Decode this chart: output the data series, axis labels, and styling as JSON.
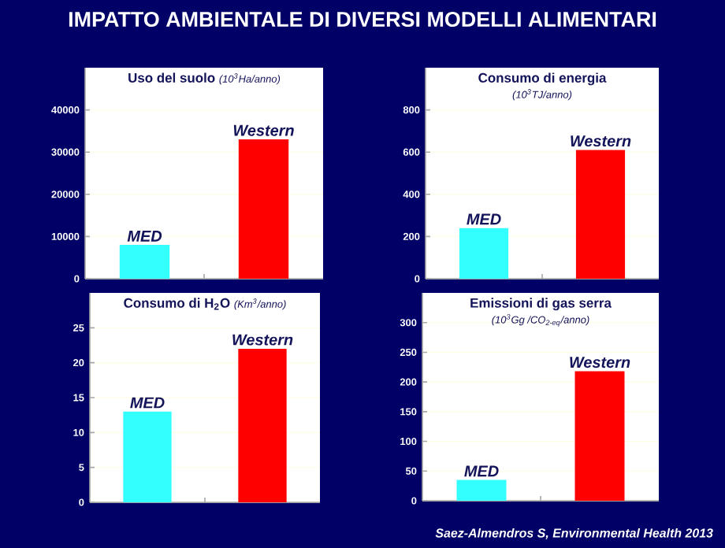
{
  "chart_data": [
    {
      "type": "bar",
      "title": "Uso del suolo",
      "subtitle": "(10$^{3}$Ha/anno)",
      "categories": [
        "MED",
        "Western"
      ],
      "values": [
        8000,
        33000
      ],
      "colors": [
        "#33ffff",
        "#ff0000"
      ],
      "ylim": [
        0,
        50000
      ],
      "yticks": [
        0,
        10000,
        20000,
        30000,
        40000
      ],
      "grid": "y"
    },
    {
      "type": "bar",
      "title": "Consumo di energia",
      "subtitle": "(10$^{3}$TJ/anno)",
      "categories": [
        "MED",
        "Western"
      ],
      "values": [
        240,
        610
      ],
      "colors": [
        "#33ffff",
        "#ff0000"
      ],
      "ylim": [
        0,
        1000
      ],
      "yticks": [
        0,
        200,
        400,
        600,
        800
      ],
      "grid": "y"
    },
    {
      "type": "bar",
      "title": "Consumo di H$_{2}$O",
      "subtitle": "(Km$^{3}$/anno)",
      "categories": [
        "MED",
        "Western"
      ],
      "values": [
        13,
        22
      ],
      "colors": [
        "#33ffff",
        "#ff0000"
      ],
      "ylim": [
        0,
        30
      ],
      "yticks": [
        0,
        5,
        10,
        15,
        20,
        25
      ],
      "grid": "y"
    },
    {
      "type": "bar",
      "title": "Emissioni di gas serra",
      "subtitle": "(10$^{3}$Gg /CO$_{2-eq}$/anno)",
      "categories": [
        "MED",
        "Western"
      ],
      "values": [
        35,
        218
      ],
      "colors": [
        "#33ffff",
        "#ff0000"
      ],
      "ylim": [
        0,
        350
      ],
      "yticks": [
        0,
        50,
        100,
        150,
        200,
        250,
        300
      ],
      "grid": "y"
    },
    {
      "type": "other",
      "title": "IMPATTO AMBIENTALE DI DIVERSI MODELLI ALIMENTARI",
      "annotations": [
        "Saez-Almendros S, Environmental Health 2013"
      ]
    }
  ]
}
